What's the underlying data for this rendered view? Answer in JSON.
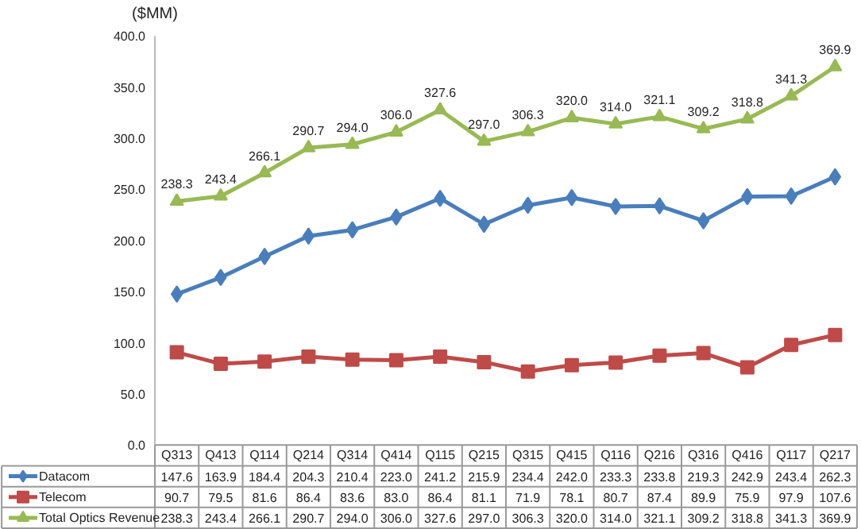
{
  "chart_data": {
    "type": "line",
    "ylabel": "($MM)",
    "categories": [
      "Q313",
      "Q413",
      "Q114",
      "Q214",
      "Q314",
      "Q414",
      "Q115",
      "Q215",
      "Q315",
      "Q415",
      "Q116",
      "Q216",
      "Q316",
      "Q416",
      "Q117",
      "Q217"
    ],
    "ylim": [
      0,
      400
    ],
    "yticks": [
      {
        "value": 0,
        "label": "0.0"
      },
      {
        "value": 50,
        "label": "50.0"
      },
      {
        "value": 100,
        "label": "100.0"
      },
      {
        "value": 150,
        "label": "150.0"
      },
      {
        "value": 200,
        "label": "200.0"
      },
      {
        "value": 250,
        "label": "250.0"
      },
      {
        "value": 300,
        "label": "300.0"
      },
      {
        "value": 350,
        "label": "350.0"
      },
      {
        "value": 400,
        "label": "400.0"
      }
    ],
    "grid": false,
    "legend": "bottom left",
    "series": [
      {
        "name": "Datacom",
        "color": "#4a7ebb",
        "marker": "diamond",
        "values": [
          147.6,
          163.9,
          184.4,
          204.3,
          210.4,
          223.0,
          241.2,
          215.9,
          234.4,
          242.0,
          233.3,
          233.8,
          219.3,
          242.9,
          243.4,
          262.3
        ],
        "value_labels": [
          "147.6",
          "163.9",
          "184.4",
          "204.3",
          "210.4",
          "223.0",
          "241.2",
          "215.9",
          "234.4",
          "242.0",
          "233.3",
          "233.8",
          "219.3",
          "242.9",
          "243.4",
          "262.3"
        ]
      },
      {
        "name": "Telecom",
        "color": "#be4b48",
        "marker": "square",
        "values": [
          90.7,
          79.5,
          81.6,
          86.4,
          83.6,
          83.0,
          86.4,
          81.1,
          71.9,
          78.1,
          80.7,
          87.4,
          89.9,
          75.9,
          97.9,
          107.6
        ],
        "value_labels": [
          "90.7",
          "79.5",
          "81.6",
          "86.4",
          "83.6",
          "83.0",
          "86.4",
          "81.1",
          "71.9",
          "78.1",
          "80.7",
          "87.4",
          "89.9",
          "75.9",
          "97.9",
          "107.6"
        ]
      },
      {
        "name": "Total Optics Revenue",
        "color": "#98b954",
        "marker": "triangle",
        "values": [
          238.3,
          243.4,
          266.1,
          290.7,
          294.0,
          306.0,
          327.6,
          297.0,
          306.3,
          320.0,
          314.0,
          321.1,
          309.2,
          318.8,
          341.3,
          369.9
        ],
        "value_labels": [
          "238.3",
          "243.4",
          "266.1",
          "290.7",
          "294.0",
          "306.0",
          "327.6",
          "297.0",
          "306.3",
          "320.0",
          "314.0",
          "321.1",
          "309.2",
          "318.8",
          "341.3",
          "369.9"
        ]
      }
    ],
    "annotations": [
      {
        "text": "238.3",
        "x": "Q313",
        "y": 238.3
      },
      {
        "text": "243.4",
        "x": "Q413",
        "y": 243.4
      },
      {
        "text": "266.1",
        "x": "Q114",
        "y": 266.1
      },
      {
        "text": "290.7",
        "x": "Q214",
        "y": 290.7
      },
      {
        "text": "294.0",
        "x": "Q314",
        "y": 294.0
      },
      {
        "text": "306.0",
        "x": "Q414",
        "y": 306.0
      },
      {
        "text": "327.6",
        "x": "Q115",
        "y": 327.6
      },
      {
        "text": "297.0",
        "x": "Q215",
        "y": 297.0
      },
      {
        "text": "306.3",
        "x": "Q315",
        "y": 306.3
      },
      {
        "text": "320.0",
        "x": "Q415",
        "y": 320.0
      },
      {
        "text": "314.0",
        "x": "Q116",
        "y": 314.0
      },
      {
        "text": "321.1",
        "x": "Q216",
        "y": 321.1
      },
      {
        "text": "309.2",
        "x": "Q316",
        "y": 309.2
      },
      {
        "text": "318.8",
        "x": "Q416",
        "y": 318.8
      },
      {
        "text": "341.3",
        "x": "Q117",
        "y": 341.3
      },
      {
        "text": "369.9",
        "x": "Q217",
        "y": 369.9
      }
    ]
  }
}
